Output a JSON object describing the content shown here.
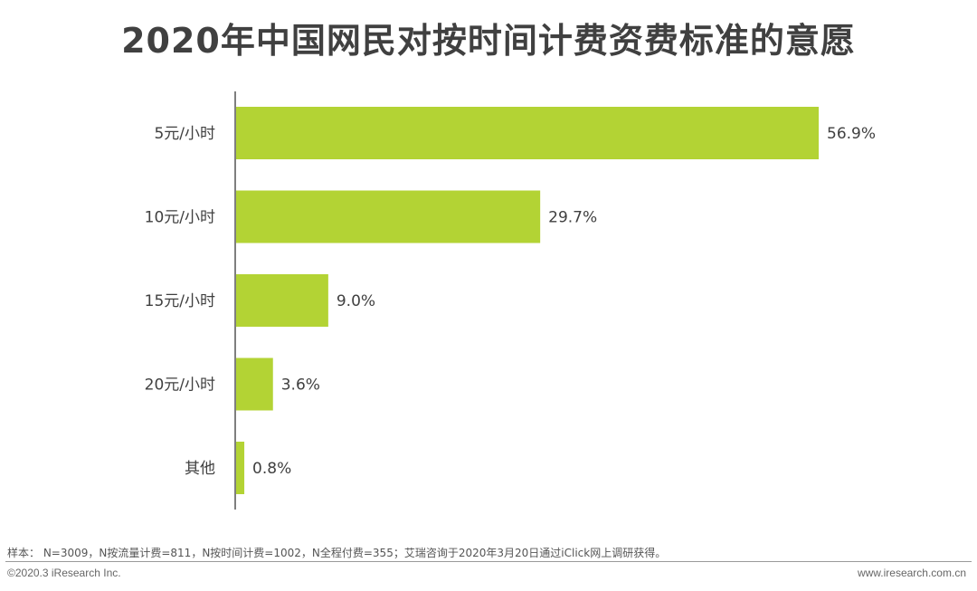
{
  "title": "2020年中国网民对按时间计费资费标准的意愿",
  "chart_data": {
    "type": "bar",
    "orientation": "horizontal",
    "categories": [
      "5元/小时",
      "10元/小时",
      "15元/小时",
      "20元/小时",
      "其他"
    ],
    "values": [
      56.9,
      29.7,
      9.0,
      3.6,
      0.8
    ],
    "value_labels": [
      "56.9%",
      "29.7%",
      "9.0%",
      "3.6%",
      "0.8%"
    ],
    "unit": "%",
    "xlim": [
      0,
      56.9
    ],
    "color": "#b3d334",
    "grid": false
  },
  "footer": {
    "note": "样本： N=3009，N按流量计费=811，N按时间计费=1002，N全程付费=355；艾瑞咨询于2020年3月20日通过iClick网上调研获得。",
    "copyright": "©2020.3 iResearch Inc.",
    "website": "www.iresearch.com.cn"
  }
}
